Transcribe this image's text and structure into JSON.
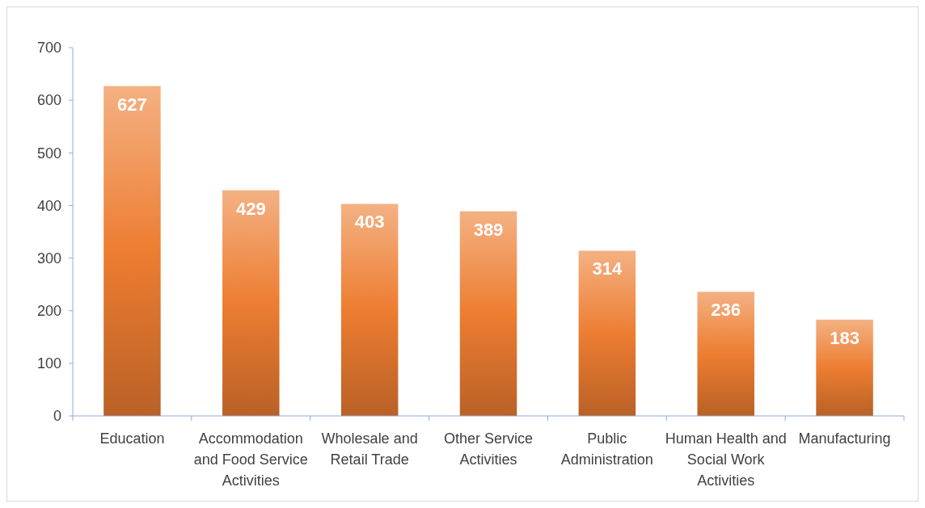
{
  "chart_data": {
    "type": "bar",
    "categories": [
      "Education",
      "Accommodation and Food Service Activities",
      "Wholesale and Retail Trade",
      "Other Service Activities",
      "Public Administration",
      "Human Health and Social Work Activities",
      "Manufacturing"
    ],
    "values": [
      627,
      429,
      403,
      389,
      314,
      236,
      183
    ],
    "color": "#ed7d31",
    "ylim": [
      0,
      700
    ],
    "yticks": [
      0,
      100,
      200,
      300,
      400,
      500,
      600,
      700
    ],
    "grid": false,
    "data_labels": true
  }
}
